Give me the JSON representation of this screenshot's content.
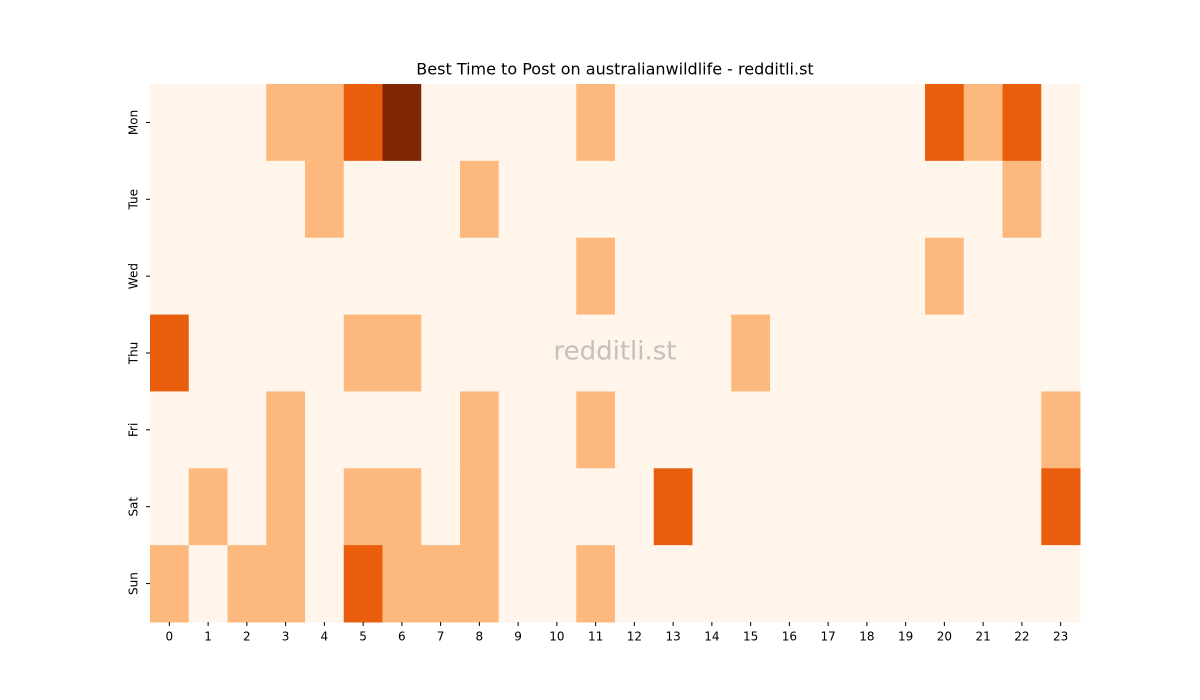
{
  "chart_data": {
    "type": "heatmap",
    "title": "Best Time to Post on australianwildlife - redditli.st",
    "watermark": "redditli.st",
    "x_categories": [
      "0",
      "1",
      "2",
      "3",
      "4",
      "5",
      "6",
      "7",
      "8",
      "9",
      "10",
      "11",
      "12",
      "13",
      "14",
      "15",
      "16",
      "17",
      "18",
      "19",
      "20",
      "21",
      "22",
      "23"
    ],
    "y_categories": [
      "Mon",
      "Tue",
      "Wed",
      "Thu",
      "Fri",
      "Sat",
      "Sun"
    ],
    "values": [
      [
        0,
        0,
        0,
        1,
        1,
        2,
        3,
        0,
        0,
        0,
        0,
        1,
        0,
        0,
        0,
        0,
        0,
        0,
        0,
        0,
        2,
        1,
        2,
        0
      ],
      [
        0,
        0,
        0,
        0,
        1,
        0,
        0,
        0,
        1,
        0,
        0,
        0,
        0,
        0,
        0,
        0,
        0,
        0,
        0,
        0,
        0,
        0,
        1,
        0
      ],
      [
        0,
        0,
        0,
        0,
        0,
        0,
        0,
        0,
        0,
        0,
        0,
        1,
        0,
        0,
        0,
        0,
        0,
        0,
        0,
        0,
        1,
        0,
        0,
        0
      ],
      [
        2,
        0,
        0,
        0,
        0,
        1,
        1,
        0,
        0,
        0,
        0,
        0,
        0,
        0,
        0,
        1,
        0,
        0,
        0,
        0,
        0,
        0,
        0,
        0
      ],
      [
        0,
        0,
        0,
        1,
        0,
        0,
        0,
        0,
        1,
        0,
        0,
        1,
        0,
        0,
        0,
        0,
        0,
        0,
        0,
        0,
        0,
        0,
        0,
        1
      ],
      [
        0,
        1,
        0,
        1,
        0,
        1,
        1,
        0,
        1,
        0,
        0,
        0,
        0,
        2,
        0,
        0,
        0,
        0,
        0,
        0,
        0,
        0,
        0,
        2
      ],
      [
        1,
        0,
        1,
        1,
        0,
        2,
        1,
        1,
        1,
        0,
        0,
        1,
        0,
        0,
        0,
        0,
        0,
        0,
        0,
        0,
        0,
        0,
        0,
        0
      ]
    ],
    "clim": [
      0,
      3
    ],
    "colorscale": [
      "#fff5eb",
      "#fdb97d",
      "#e95e0d",
      "#7f2704"
    ]
  }
}
